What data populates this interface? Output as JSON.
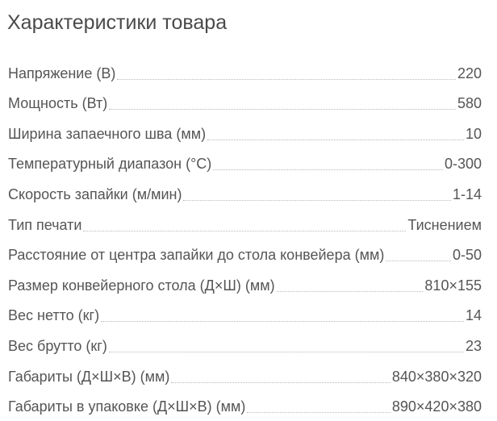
{
  "title": "Характеристики товара",
  "specs": [
    {
      "label": "Напряжение (В)",
      "value": "220"
    },
    {
      "label": "Мощность (Вт)",
      "value": "580"
    },
    {
      "label": "Ширина запаечного шва (мм)",
      "value": "10"
    },
    {
      "label": "Температурный диапазон (°С)",
      "value": "0-300"
    },
    {
      "label": "Скорость запайки (м/мин)",
      "value": "1-14"
    },
    {
      "label": "Тип печати",
      "value": "Тиснением"
    },
    {
      "label": "Расстояние от центра запайки до стола конвейера (мм)",
      "value": "0-50"
    },
    {
      "label": "Размер конвейерного стола (Д×Ш) (мм)",
      "value": "810×155"
    },
    {
      "label": "Вес нетто (кг)",
      "value": "14"
    },
    {
      "label": "Вес брутто (кг)",
      "value": "23"
    },
    {
      "label": "Габариты (Д×Ш×В) (мм)",
      "value": "840×380×320"
    },
    {
      "label": "Габариты в упаковке (Д×Ш×В) (мм)",
      "value": "890×420×380"
    }
  ]
}
